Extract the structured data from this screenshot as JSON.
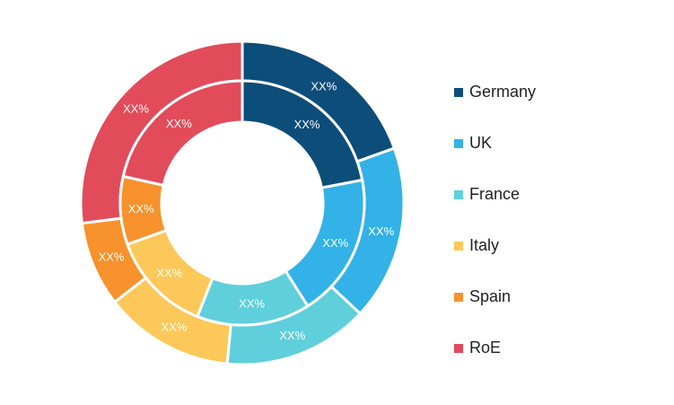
{
  "chart_data": {
    "type": "donut",
    "categories": [
      "Germany",
      "UK",
      "France",
      "Italy",
      "Spain",
      "RoE"
    ],
    "colors": [
      "#0d4d7a",
      "#32b2e6",
      "#5fcfdc",
      "#fcc85a",
      "#f7922c",
      "#e24b5a"
    ],
    "series": [
      {
        "ring": "outer",
        "values": [
          19.5,
          17.5,
          14.5,
          13,
          8.5,
          27
        ],
        "labels": [
          "XX%",
          "XX%",
          "XX%",
          "XX%",
          "XX%",
          "XX%"
        ]
      },
      {
        "ring": "inner",
        "values": [
          22,
          19,
          15,
          13.5,
          9,
          21.5
        ],
        "labels": [
          "XX%",
          "XX%",
          "XX%",
          "XX%",
          "XX%",
          "XX%"
        ]
      }
    ],
    "legend_position": "right",
    "title": "",
    "xlabel": "",
    "ylabel": ""
  }
}
